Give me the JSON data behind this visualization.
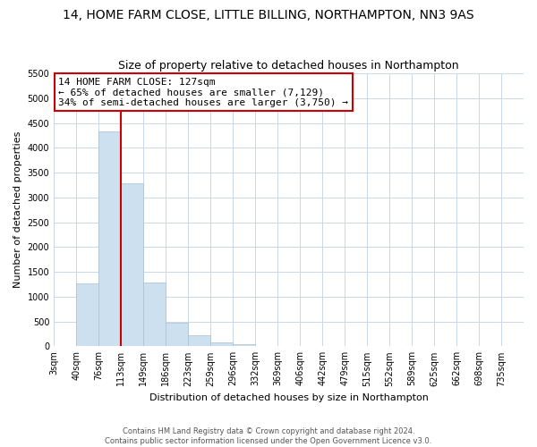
{
  "title": "14, HOME FARM CLOSE, LITTLE BILLING, NORTHAMPTON, NN3 9AS",
  "subtitle": "Size of property relative to detached houses in Northampton",
  "xlabel": "Distribution of detached houses by size in Northampton",
  "ylabel": "Number of detached properties",
  "bar_labels": [
    "3sqm",
    "40sqm",
    "76sqm",
    "113sqm",
    "149sqm",
    "186sqm",
    "223sqm",
    "259sqm",
    "296sqm",
    "332sqm",
    "369sqm",
    "406sqm",
    "442sqm",
    "479sqm",
    "515sqm",
    "552sqm",
    "589sqm",
    "625sqm",
    "662sqm",
    "698sqm",
    "735sqm"
  ],
  "bar_values": [
    0,
    1270,
    4330,
    3290,
    1290,
    475,
    230,
    75,
    40,
    0,
    0,
    0,
    0,
    0,
    0,
    0,
    0,
    0,
    0,
    0,
    0
  ],
  "bar_color": "#cce0f0",
  "bar_edge_color": "#aabfcf",
  "ylim": [
    0,
    5500
  ],
  "yticks": [
    0,
    500,
    1000,
    1500,
    2000,
    2500,
    3000,
    3500,
    4000,
    4500,
    5000,
    5500
  ],
  "vline_x_index": 3,
  "vline_color": "#cc0000",
  "annotation_title": "14 HOME FARM CLOSE: 127sqm",
  "annotation_line1": "← 65% of detached houses are smaller (7,129)",
  "annotation_line2": "34% of semi-detached houses are larger (3,750) →",
  "annotation_box_color": "#ffffff",
  "annotation_box_edge": "#cc0000",
  "footer1": "Contains HM Land Registry data © Crown copyright and database right 2024.",
  "footer2": "Contains public sector information licensed under the Open Government Licence v3.0.",
  "bg_color": "#ffffff",
  "grid_color": "#c8d8e8",
  "title_fontsize": 10,
  "subtitle_fontsize": 9,
  "ylabel_fontsize": 8,
  "xlabel_fontsize": 8,
  "tick_fontsize": 7,
  "annot_fontsize": 8,
  "footer_fontsize": 6
}
